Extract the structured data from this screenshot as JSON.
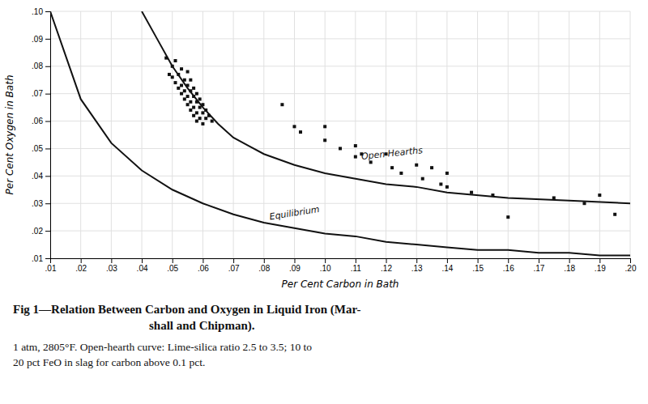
{
  "chart_data": {
    "type": "line",
    "title": [
      "Fig 1—Relation Between Carbon and Oxygen in Liquid Iron (Mar-",
      "shall and Chipman)."
    ],
    "subtitle": [
      "1 atm, 2805°F. Open-hearth curve: Lime-silica ratio 2.5 to 3.5; 10 to",
      "20 pct FeO in slag for carbon above 0.1 pct."
    ],
    "xlabel": "Per Cent Carbon in Bath",
    "ylabel": "Per Cent Oxygen in Bath",
    "xlim": [
      0.01,
      0.2
    ],
    "ylim": [
      0.01,
      0.1
    ],
    "xticks": [
      {
        "value": 0.01,
        "label": ".01"
      },
      {
        "value": 0.02,
        "label": ".02"
      },
      {
        "value": 0.03,
        "label": ".03"
      },
      {
        "value": 0.04,
        "label": ".04"
      },
      {
        "value": 0.05,
        "label": ".05"
      },
      {
        "value": 0.06,
        "label": ".06"
      },
      {
        "value": 0.07,
        "label": ".07"
      },
      {
        "value": 0.08,
        "label": ".08"
      },
      {
        "value": 0.09,
        "label": ".09"
      },
      {
        "value": 0.1,
        "label": ".10"
      },
      {
        "value": 0.11,
        "label": ".11"
      },
      {
        "value": 0.12,
        "label": ".12"
      },
      {
        "value": 0.13,
        "label": ".13"
      },
      {
        "value": 0.14,
        "label": ".14"
      },
      {
        "value": 0.15,
        "label": ".15"
      },
      {
        "value": 0.16,
        "label": ".16"
      },
      {
        "value": 0.17,
        "label": ".17"
      },
      {
        "value": 0.18,
        "label": ".18"
      },
      {
        "value": 0.19,
        "label": ".19"
      },
      {
        "value": 0.2,
        "label": ".20"
      }
    ],
    "yticks": [
      {
        "value": 0.01,
        "label": ".01"
      },
      {
        "value": 0.02,
        "label": ".02"
      },
      {
        "value": 0.03,
        "label": ".03"
      },
      {
        "value": 0.04,
        "label": ".04"
      },
      {
        "value": 0.05,
        "label": ".05"
      },
      {
        "value": 0.06,
        "label": ".06"
      },
      {
        "value": 0.07,
        "label": ".07"
      },
      {
        "value": 0.08,
        "label": ".08"
      },
      {
        "value": 0.09,
        "label": ".09"
      },
      {
        "value": 0.1,
        "label": ".10"
      }
    ],
    "grid": true,
    "series": [
      {
        "type": "line",
        "color": "#111111",
        "x": [
          0.01,
          0.02,
          0.03,
          0.04,
          0.05,
          0.06,
          0.07,
          0.08,
          0.09,
          0.1,
          0.11,
          0.12,
          0.13,
          0.14,
          0.15,
          0.16,
          0.17,
          0.18,
          0.19,
          0.2
        ],
        "values": [
          0.1,
          0.068,
          0.052,
          0.042,
          0.035,
          0.03,
          0.026,
          0.023,
          0.021,
          0.019,
          0.018,
          0.016,
          0.015,
          0.014,
          0.013,
          0.013,
          0.012,
          0.012,
          0.011,
          0.011
        ]
      },
      {
        "type": "line",
        "color": "#111111",
        "x": [
          0.04,
          0.045,
          0.05,
          0.055,
          0.06,
          0.065,
          0.07,
          0.075,
          0.08,
          0.09,
          0.1,
          0.11,
          0.12,
          0.13,
          0.14,
          0.16,
          0.18,
          0.2
        ],
        "values": [
          0.1,
          0.09,
          0.08,
          0.072,
          0.065,
          0.059,
          0.054,
          0.051,
          0.048,
          0.044,
          0.041,
          0.039,
          0.037,
          0.036,
          0.034,
          0.032,
          0.031,
          0.03
        ]
      },
      {
        "type": "scatter",
        "marker": "square",
        "color": "#111111",
        "x": [
          0.048,
          0.051,
          0.05,
          0.053,
          0.055,
          0.049,
          0.052,
          0.05,
          0.054,
          0.056,
          0.051,
          0.053,
          0.055,
          0.057,
          0.052,
          0.054,
          0.056,
          0.058,
          0.053,
          0.055,
          0.057,
          0.059,
          0.054,
          0.056,
          0.058,
          0.06,
          0.055,
          0.057,
          0.059,
          0.061,
          0.056,
          0.058,
          0.06,
          0.062,
          0.057,
          0.059,
          0.061,
          0.063,
          0.058,
          0.06,
          0.086,
          0.09,
          0.092,
          0.1,
          0.1,
          0.105,
          0.11,
          0.11,
          0.112,
          0.115,
          0.12,
          0.122,
          0.125,
          0.13,
          0.132,
          0.135,
          0.138,
          0.14,
          0.14,
          0.148,
          0.155,
          0.16,
          0.175,
          0.185,
          0.19,
          0.195
        ],
        "values": [
          0.083,
          0.082,
          0.08,
          0.079,
          0.078,
          0.077,
          0.077,
          0.076,
          0.075,
          0.075,
          0.074,
          0.073,
          0.073,
          0.072,
          0.072,
          0.071,
          0.071,
          0.07,
          0.07,
          0.069,
          0.069,
          0.068,
          0.068,
          0.067,
          0.067,
          0.066,
          0.066,
          0.065,
          0.065,
          0.064,
          0.064,
          0.063,
          0.063,
          0.062,
          0.062,
          0.061,
          0.061,
          0.06,
          0.06,
          0.059,
          0.066,
          0.058,
          0.056,
          0.058,
          0.053,
          0.05,
          0.051,
          0.047,
          0.048,
          0.045,
          0.048,
          0.043,
          0.041,
          0.044,
          0.039,
          0.043,
          0.037,
          0.041,
          0.036,
          0.034,
          0.033,
          0.025,
          0.032,
          0.03,
          0.033,
          0.026
        ]
      }
    ],
    "annotations": [
      {
        "text": "Open Hearths",
        "x": 0.112,
        "y": 0.046
      },
      {
        "text": "Equilibrium",
        "x": 0.082,
        "y": 0.024
      }
    ]
  }
}
